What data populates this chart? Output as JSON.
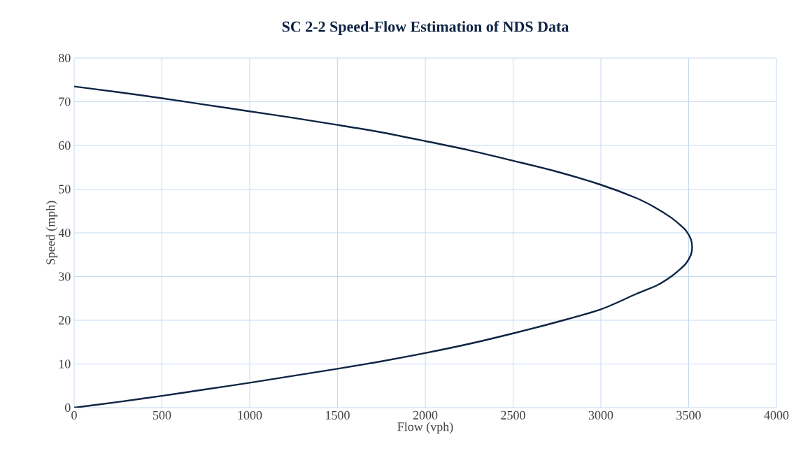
{
  "chart_data": {
    "type": "line",
    "title": "SC 2-2 Speed-Flow Estimation of NDS Data",
    "xlabel": "Flow (vph)",
    "ylabel": "Speed (mph)",
    "xlim": [
      0,
      4000
    ],
    "ylim": [
      0,
      80
    ],
    "xticks": [
      0,
      500,
      1000,
      1500,
      2000,
      2500,
      3000,
      3500,
      4000
    ],
    "yticks": [
      0,
      10,
      20,
      30,
      40,
      50,
      60,
      70,
      80
    ],
    "grid": true,
    "marker": "none",
    "line_style": "solid",
    "series": [
      {
        "color": "#0e2444",
        "x": [
          0,
          250,
          500,
          750,
          1000,
          1250,
          1500,
          1750,
          2000,
          2250,
          2500,
          2750,
          3000,
          3200,
          3320,
          3400,
          3460,
          3485,
          3513,
          3520,
          3513,
          3485,
          3460,
          3400,
          3300,
          3200,
          3000,
          2750,
          2500,
          2250,
          2000,
          1750,
          1500,
          1250,
          1000,
          750,
          500,
          250,
          0
        ],
        "values": [
          0,
          1.3,
          2.7,
          4.2,
          5.7,
          7.3,
          8.9,
          10.6,
          12.5,
          14.6,
          17,
          19.6,
          22.5,
          26,
          28,
          30,
          32,
          33,
          35,
          36.7,
          38.5,
          40.5,
          41.5,
          43.5,
          46,
          48,
          51,
          54,
          56.5,
          58.9,
          61,
          63,
          64.7,
          66.3,
          67.8,
          69.3,
          70.8,
          72.2,
          73.5
        ]
      }
    ]
  }
}
